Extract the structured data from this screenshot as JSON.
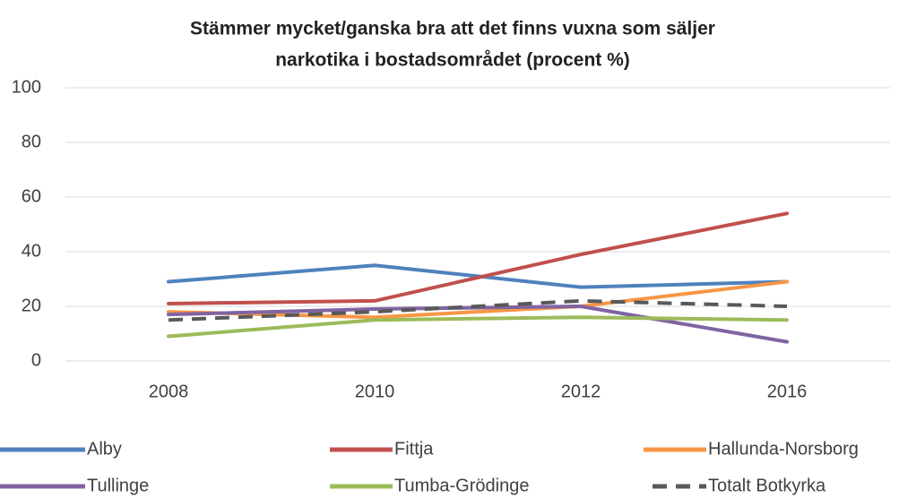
{
  "chart_data": {
    "type": "line",
    "title": [
      "Stämmer mycket/ganska bra att det finns vuxna som säljer",
      "narkotika i bostadsområdet (procent %)"
    ],
    "categories": [
      "2008",
      "2010",
      "2012",
      "2016"
    ],
    "series": [
      {
        "name": "Alby",
        "color": "#4f81bd",
        "values": [
          29,
          35,
          27,
          29
        ]
      },
      {
        "name": "Fittja",
        "color": "#c0504d",
        "values": [
          21,
          22,
          39,
          54
        ]
      },
      {
        "name": "Hallunda-Norsborg",
        "color": "#f79646",
        "values": [
          18,
          16,
          20,
          29
        ]
      },
      {
        "name": "Tullinge",
        "color": "#8064a2",
        "values": [
          17,
          19,
          20,
          7
        ]
      },
      {
        "name": "Tumba-Grödinge",
        "color": "#9bbb59",
        "values": [
          9,
          15,
          16,
          15
        ]
      },
      {
        "name": "Totalt Botkyrka",
        "color": "#595959",
        "dashed": true,
        "values": [
          15,
          18,
          22,
          20
        ]
      }
    ],
    "ylim": [
      0,
      100
    ],
    "yticks": [
      0,
      20,
      40,
      60,
      80,
      100
    ],
    "grid": true
  }
}
